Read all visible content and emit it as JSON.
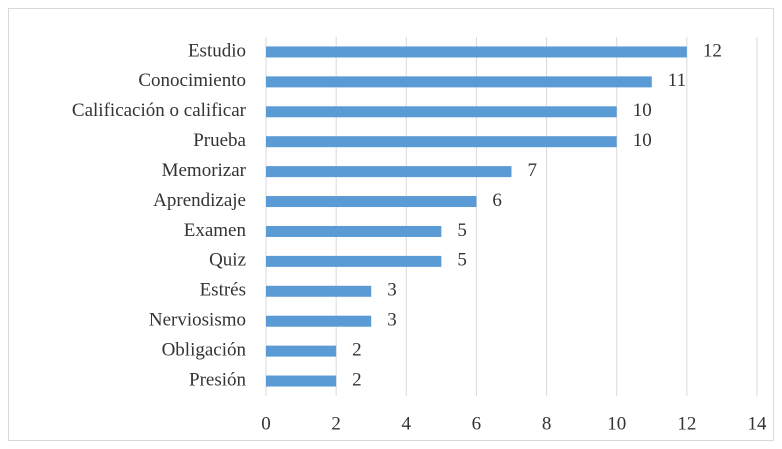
{
  "chart_data": {
    "type": "bar",
    "orientation": "horizontal",
    "categories": [
      "Estudio",
      "Conocimiento",
      "Calificación o calificar",
      "Prueba",
      "Memorizar",
      "Aprendizaje",
      "Examen",
      "Quiz",
      "Estrés",
      "Nerviosismo",
      "Obligación",
      "Presión"
    ],
    "values": [
      12,
      11,
      10,
      10,
      7,
      6,
      5,
      5,
      3,
      3,
      2,
      2
    ],
    "color": "#5b9bd5",
    "xlim": [
      0,
      14
    ],
    "xticks": [
      0,
      2,
      4,
      6,
      8,
      10,
      12,
      14
    ],
    "grid": true
  }
}
